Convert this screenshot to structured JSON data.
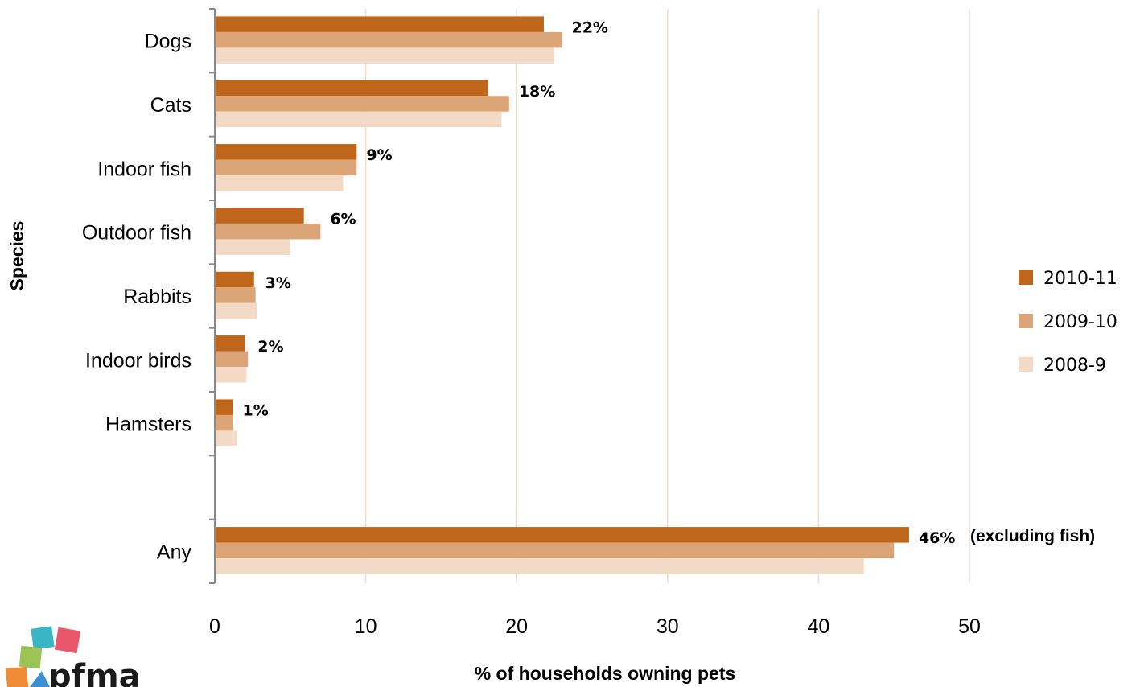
{
  "chart_data": {
    "type": "bar",
    "orientation": "horizontal",
    "categories": [
      "Dogs",
      "Cats",
      "Indoor fish",
      "Outdoor fish",
      "Rabbits",
      "Indoor birds",
      "Hamsters",
      "",
      "Any"
    ],
    "series": [
      {
        "name": "2010-11",
        "color": "#c0661a",
        "values": [
          21.8,
          18.1,
          9.4,
          5.9,
          2.6,
          2.0,
          1.2,
          null,
          46.0
        ]
      },
      {
        "name": "2009-10",
        "color": "#dba577",
        "values": [
          23.0,
          19.5,
          9.4,
          7.0,
          2.7,
          2.2,
          1.2,
          null,
          45.0
        ]
      },
      {
        "name": "2008-9",
        "color": "#f2dac7",
        "values": [
          22.5,
          19.0,
          8.5,
          5.0,
          2.8,
          2.1,
          1.5,
          null,
          43.0
        ]
      }
    ],
    "data_labels": [
      "22%",
      "18%",
      "9%",
      "6%",
      "3%",
      "2%",
      "1%",
      "",
      "46%"
    ],
    "annotation": "(excluding fish)",
    "xlabel": "% of households owning pets",
    "ylabel": "Species",
    "xlim": [
      0,
      50
    ],
    "xticks": [
      0,
      10,
      20,
      30,
      40,
      50
    ],
    "grid": "vertical",
    "legend": "right"
  },
  "logo": {
    "text": "pfma"
  }
}
